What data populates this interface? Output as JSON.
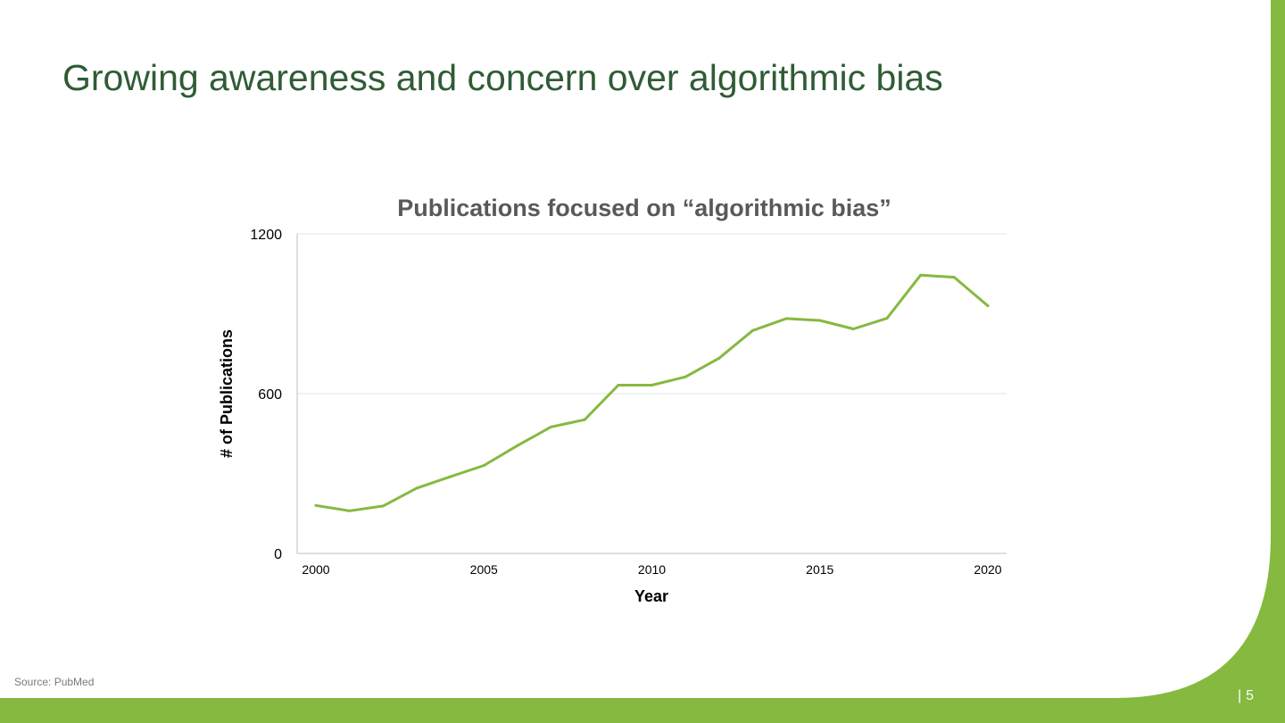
{
  "slide": {
    "title": "Growing awareness and concern over algorithmic bias",
    "source": "Source: PubMed",
    "page_number": "5",
    "accent_color": "#86b940",
    "title_color": "#2f5c35"
  },
  "chart_data": {
    "type": "line",
    "title": "Publications focused on “algorithmic bias”",
    "xlabel": "Year",
    "ylabel": "# of Publications",
    "x": [
      2000,
      2001,
      2002,
      2003,
      2004,
      2005,
      2006,
      2007,
      2008,
      2009,
      2010,
      2011,
      2012,
      2013,
      2014,
      2015,
      2016,
      2017,
      2018,
      2019,
      2020
    ],
    "series": [
      {
        "name": "",
        "color": "#86b940",
        "values": [
          180,
          160,
          178,
          245,
          288,
          330,
          405,
          475,
          502,
          632,
          632,
          663,
          733,
          837,
          882,
          875,
          843,
          883,
          1045,
          1037,
          930
        ]
      }
    ],
    "xlim": [
      2000,
      2020
    ],
    "ylim": [
      0,
      1200
    ],
    "yticks": [
      0,
      600,
      1200
    ],
    "xticks": [
      2000,
      2005,
      2010,
      2015,
      2020
    ],
    "grid": true,
    "legend": "none"
  }
}
